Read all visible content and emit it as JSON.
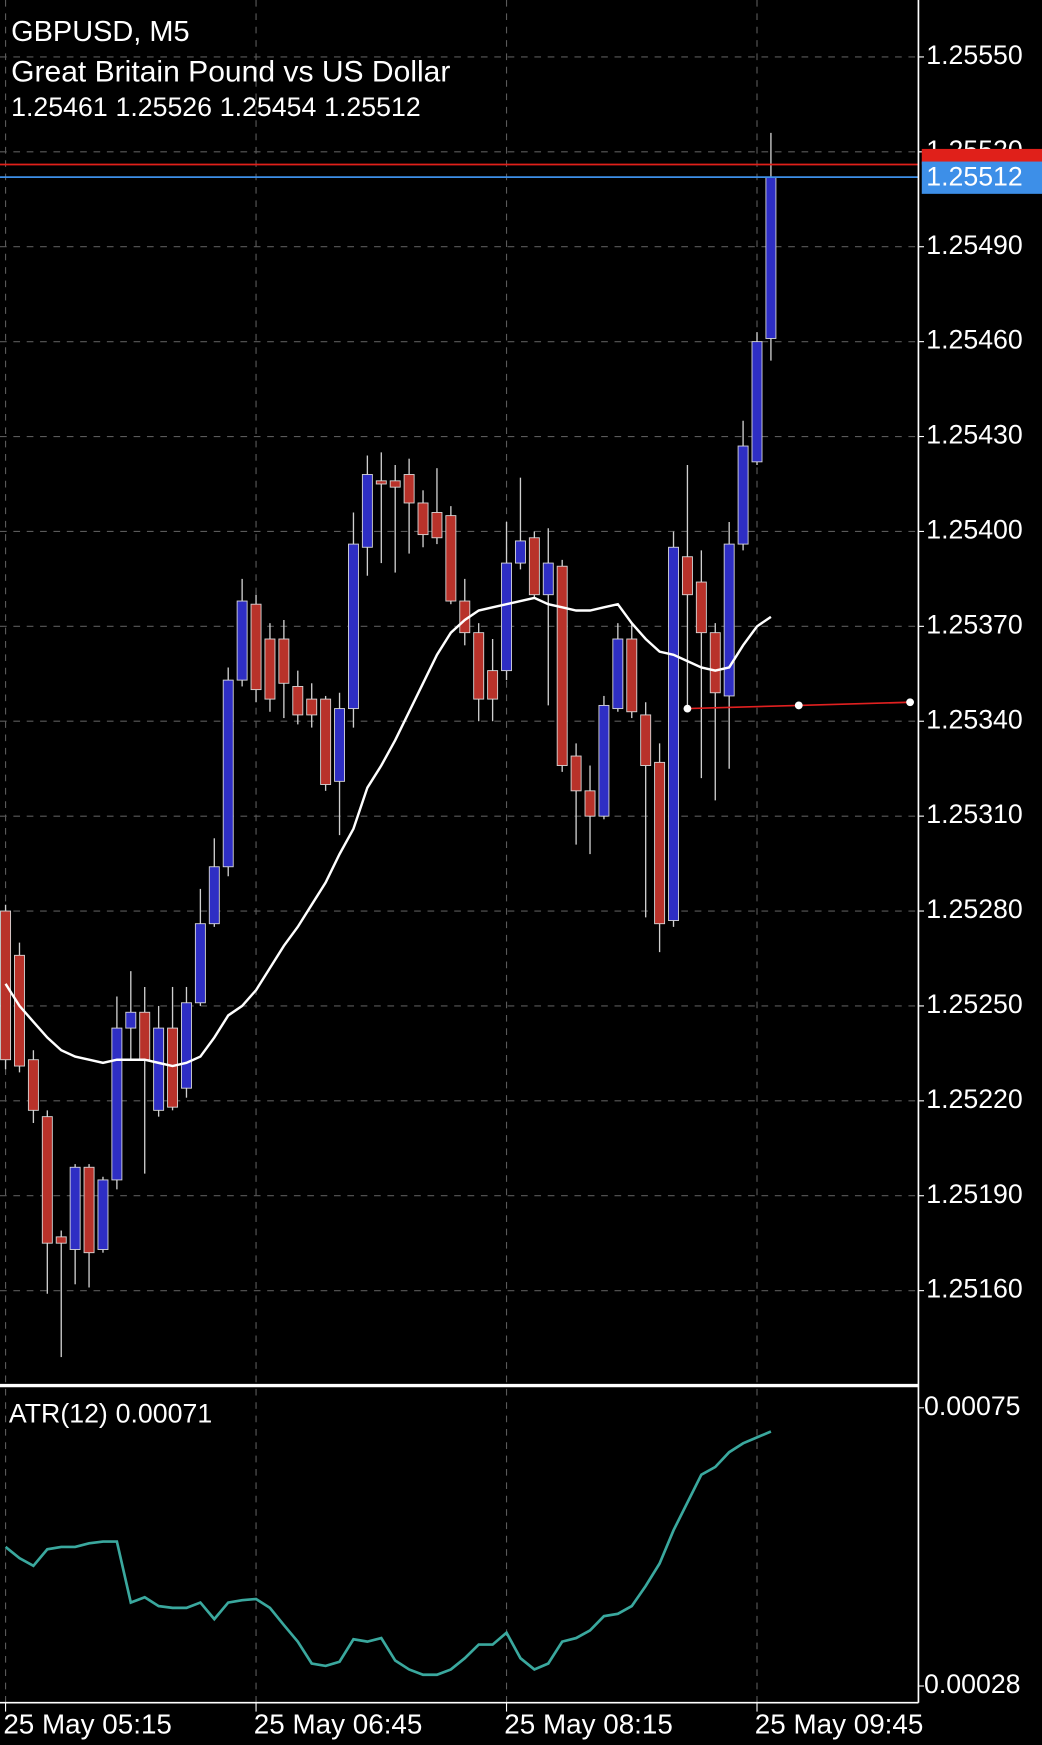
{
  "chart_data": [
    {
      "type": "candlestick",
      "title": "GBPUSD, M5",
      "subtitle": "Great Britain Pound vs US Dollar",
      "categories": [
        "25 May 05:15",
        null,
        null,
        null,
        null,
        null,
        null,
        null,
        null,
        null,
        null,
        null,
        null,
        null,
        null,
        null,
        null,
        null,
        "25 May 06:45",
        null,
        null,
        null,
        null,
        null,
        null,
        null,
        null,
        null,
        null,
        null,
        null,
        null,
        null,
        null,
        null,
        null,
        "25 May 08:15",
        null,
        null,
        null,
        null,
        null,
        null,
        null,
        null,
        null,
        null,
        null,
        null,
        null,
        null,
        null,
        null,
        null,
        "25 May 09:45",
        null
      ],
      "open": [
        1.2528,
        1.25266,
        1.25233,
        1.25215,
        1.25177,
        1.25173,
        1.25199,
        1.25173,
        1.25195,
        1.25243,
        1.25248,
        1.25217,
        1.25243,
        1.25224,
        1.25251,
        1.25276,
        1.25294,
        1.25353,
        1.25377,
        1.25366,
        1.25366,
        1.25351,
        1.25347,
        1.25347,
        1.25321,
        1.25344,
        1.25395,
        1.25416,
        1.25416,
        1.25418,
        1.25409,
        1.25406,
        1.25405,
        1.25378,
        1.25368,
        1.25356,
        1.25356,
        1.2539,
        1.25398,
        1.2538,
        1.25389,
        1.25329,
        1.25318,
        1.2531,
        1.25344,
        1.25366,
        1.25342,
        1.25327,
        1.25277,
        1.25392,
        1.25384,
        1.25368,
        1.25348,
        1.25396,
        1.25422,
        1.25461
      ],
      "high": [
        1.25282,
        1.2527,
        1.25236,
        1.25217,
        1.25179,
        1.252,
        1.252,
        1.25196,
        1.25253,
        1.25261,
        1.25256,
        1.2525,
        1.25256,
        1.25256,
        1.25287,
        1.25303,
        1.25357,
        1.25385,
        1.2538,
        1.25371,
        1.25372,
        1.25356,
        1.25352,
        1.25348,
        1.25349,
        1.25406,
        1.25424,
        1.25425,
        1.25421,
        1.25423,
        1.25413,
        1.2542,
        1.25408,
        1.25385,
        1.25371,
        1.25366,
        1.25403,
        1.25417,
        1.254,
        1.25401,
        1.25391,
        1.25333,
        1.25326,
        1.25348,
        1.25371,
        1.25371,
        1.25346,
        1.25333,
        1.254,
        1.25421,
        1.25394,
        1.25371,
        1.25403,
        1.25435,
        1.25463,
        1.25526
      ],
      "low": [
        1.2523,
        1.25229,
        1.25213,
        1.25159,
        1.25139,
        1.25162,
        1.25161,
        1.25172,
        1.25192,
        1.25233,
        1.25197,
        1.25215,
        1.25217,
        1.25221,
        1.2525,
        1.25275,
        1.25291,
        1.25351,
        1.25346,
        1.25343,
        1.25341,
        1.25339,
        1.25338,
        1.25318,
        1.25304,
        1.25338,
        1.25386,
        1.2539,
        1.25387,
        1.25393,
        1.25395,
        1.25396,
        1.25377,
        1.25364,
        1.2534,
        1.2534,
        1.25353,
        1.25388,
        1.25379,
        1.25345,
        1.25324,
        1.25301,
        1.25298,
        1.25309,
        1.25343,
        1.25341,
        1.25278,
        1.25267,
        1.25275,
        1.25345,
        1.25322,
        1.25315,
        1.25325,
        1.25394,
        1.25421,
        1.25454
      ],
      "close": [
        1.25233,
        1.25231,
        1.25217,
        1.25175,
        1.25175,
        1.25199,
        1.25172,
        1.25195,
        1.25243,
        1.25248,
        1.25233,
        1.25243,
        1.25218,
        1.25251,
        1.25276,
        1.25294,
        1.25353,
        1.25378,
        1.2535,
        1.25347,
        1.25352,
        1.25342,
        1.25342,
        1.2532,
        1.25344,
        1.25396,
        1.25418,
        1.25415,
        1.25414,
        1.25409,
        1.25399,
        1.25398,
        1.25378,
        1.25368,
        1.25347,
        1.25347,
        1.2539,
        1.25397,
        1.2538,
        1.2539,
        1.25326,
        1.25318,
        1.2531,
        1.25345,
        1.25366,
        1.25343,
        1.25326,
        1.25276,
        1.25395,
        1.2538,
        1.25368,
        1.25349,
        1.25396,
        1.25427,
        1.2546,
        1.25512
      ],
      "up_color": "#2e2ec4",
      "down_color": "#b8322a",
      "ma": {
        "color": "#ffffff",
        "values": [
          1.25257,
          1.2525,
          1.25245,
          1.2524,
          1.25236,
          1.25234,
          1.25233,
          1.25232,
          1.25233,
          1.25233,
          1.25233,
          1.25232,
          1.25231,
          1.25232,
          1.25234,
          1.2524,
          1.25247,
          1.2525,
          1.25255,
          1.25262,
          1.25269,
          1.25275,
          1.25282,
          1.25289,
          1.25298,
          1.25306,
          1.25319,
          1.25326,
          1.25334,
          1.25343,
          1.25352,
          1.25361,
          1.25368,
          1.25372,
          1.25375,
          1.25376,
          1.25377,
          1.25378,
          1.25379,
          1.25377,
          1.25376,
          1.25375,
          1.25375,
          1.25376,
          1.25377,
          1.25371,
          1.25366,
          1.25362,
          1.25361,
          1.25359,
          1.25357,
          1.25356,
          1.25357,
          1.25364,
          1.2537,
          1.25373
        ]
      },
      "trendline": {
        "color": "#e02020",
        "x": [
          49,
          57,
          65
        ],
        "values": [
          1.25344,
          1.25345,
          1.25346
        ]
      },
      "bid": {
        "value": 1.25512,
        "color": "#3d8fe8"
      },
      "ask": {
        "value": 1.25516,
        "color": "#e0201a"
      },
      "ylim": [
        1.2513,
        1.25568
      ],
      "yticks": [
        {
          "value": 1.2516,
          "label": "1.25160"
        },
        {
          "value": 1.2519,
          "label": "1.25190"
        },
        {
          "value": 1.2522,
          "label": "1.25220"
        },
        {
          "value": 1.2525,
          "label": "1.25250"
        },
        {
          "value": 1.2528,
          "label": "1.25280"
        },
        {
          "value": 1.2531,
          "label": "1.25310"
        },
        {
          "value": 1.2534,
          "label": "1.25340"
        },
        {
          "value": 1.2537,
          "label": "1.25370"
        },
        {
          "value": 1.254,
          "label": "1.25400"
        },
        {
          "value": 1.2543,
          "label": "1.25430"
        },
        {
          "value": 1.2546,
          "label": "1.25460"
        },
        {
          "value": 1.2549,
          "label": "1.25490"
        },
        {
          "value": 1.2552,
          "label": "1.25520"
        },
        {
          "value": 1.2555,
          "label": "1.25550"
        }
      ],
      "grid": true
    },
    {
      "type": "line",
      "series": [
        {
          "name": "ATR(12)",
          "color": "#3aa89e",
          "values": [
            0.000515,
            0.000496,
            0.000483,
            0.000511,
            0.000515,
            0.000515,
            0.000521,
            0.000524,
            0.000524,
            0.000421,
            0.00043,
            0.000415,
            0.000412,
            0.000412,
            0.000421,
            0.000393,
            0.000421,
            0.000425,
            0.000427,
            0.000412,
            0.000383,
            0.000355,
            0.000318,
            0.000314,
            0.000321,
            0.000359,
            0.000355,
            0.000361,
            0.000323,
            0.000308,
            0.000299,
            0.000299,
            0.000308,
            0.000327,
            0.00035,
            0.00035,
            0.00037,
            0.000327,
            0.000308,
            0.000318,
            0.000355,
            0.000361,
            0.000374,
            0.000398,
            0.000402,
            0.000415,
            0.000449,
            0.000487,
            0.000543,
            0.00059,
            0.000637,
            0.00065,
            0.000675,
            0.00069,
            0.0007,
            0.00071
          ]
        }
      ],
      "ylim": [
        0.00028,
        0.00075
      ],
      "yticks": [
        0.00028,
        0.00075
      ]
    }
  ]
}
